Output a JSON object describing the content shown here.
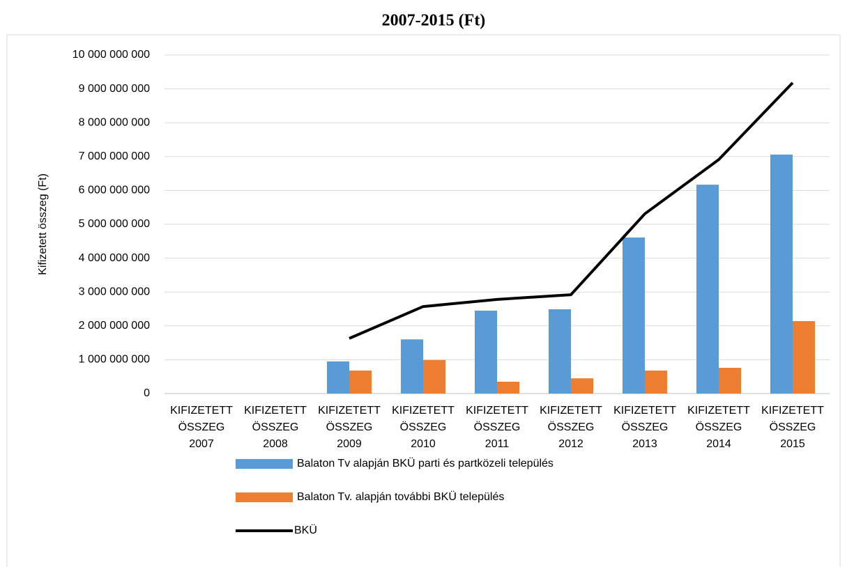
{
  "chart_data": {
    "type": "bar_line",
    "title": "2007-2015 (Ft)",
    "y_axis_label": "Kifizetett összeg (Ft)",
    "categories": [
      "KIFIZETETT ÖSSZEG 2007",
      "KIFIZETETT ÖSSZEG 2008",
      "KIFIZETETT ÖSSZEG 2009",
      "KIFIZETETT ÖSSZEG 2010",
      "KIFIZETETT ÖSSZEG 2011",
      "KIFIZETETT ÖSSZEG 2012",
      "KIFIZETETT ÖSSZEG 2013",
      "KIFIZETETT ÖSSZEG 2014",
      "KIFIZETETT ÖSSZEG 2015"
    ],
    "series": [
      {
        "name": "Balaton Tv alapján BKÜ parti és partközeli település",
        "type": "bar",
        "color": "#5b9bd5",
        "values": [
          null,
          null,
          950000000,
          1600000000,
          2450000000,
          2490000000,
          4610000000,
          6170000000,
          7060000000
        ]
      },
      {
        "name": "Balaton Tv. alapján további BKÜ település",
        "type": "bar",
        "color": "#ed7d31",
        "values": [
          null,
          null,
          680000000,
          990000000,
          350000000,
          450000000,
          680000000,
          760000000,
          2140000000
        ]
      },
      {
        "name": "BKÜ",
        "type": "line",
        "color": "#000000",
        "values": [
          null,
          null,
          1630000000,
          2570000000,
          2780000000,
          2920000000,
          5310000000,
          6910000000,
          9180000000
        ]
      }
    ],
    "ylim": [
      0,
      10000000000
    ],
    "yticks": [
      0,
      {
        "value": 1000000000,
        "label": "1 000 000 000"
      },
      {
        "value": 2000000000,
        "label": "2 000 000 000"
      },
      {
        "value": 3000000000,
        "label": "3 000 000 000"
      },
      {
        "value": 4000000000,
        "label": "4 000 000 000"
      },
      {
        "value": 5000000000,
        "label": "5 000 000 000"
      },
      {
        "value": 6000000000,
        "label": "6 000 000 000"
      },
      {
        "value": 7000000000,
        "label": "7 000 000 000"
      },
      {
        "value": 8000000000,
        "label": "8 000 000 000"
      },
      {
        "value": 9000000000,
        "label": "9 000 000 000"
      },
      {
        "value": 10000000000,
        "label": "10 000 000 000"
      }
    ],
    "grid": true,
    "legend": "bottom"
  }
}
